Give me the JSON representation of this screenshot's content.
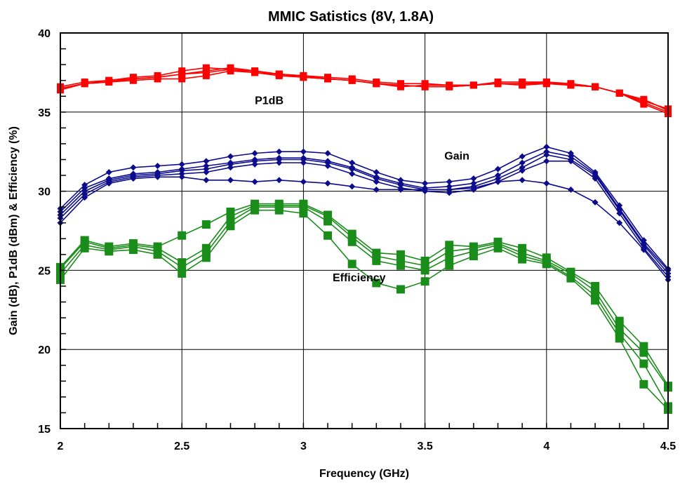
{
  "chart_data": {
    "type": "line",
    "title": "MMIC Satistics (8V, 1.8A)",
    "xlabel": "Frequency (GHz)",
    "ylabel": "Gain (dB), P1dB (dBm) & Efficiency (%)",
    "xlim": [
      2,
      4.5
    ],
    "ylim": [
      15,
      40
    ],
    "x_ticks": [
      "2",
      "2.5",
      "3",
      "3.5",
      "4",
      "4.5"
    ],
    "y_ticks": [
      "15",
      "20",
      "25",
      "30",
      "35",
      "40"
    ],
    "grid": true,
    "annotations": [
      {
        "text": "P1dB",
        "x": 2.8,
        "y": 35.5
      },
      {
        "text": "Gain",
        "x": 3.58,
        "y": 32.0
      },
      {
        "text": "Efficiency",
        "x": 3.12,
        "y": 24.3
      }
    ],
    "groups": [
      {
        "label": "P1dB",
        "color": "#ff0000",
        "marker": "square",
        "x": [
          2.0,
          2.1,
          2.2,
          2.3,
          2.4,
          2.5,
          2.6,
          2.7,
          2.8,
          2.9,
          3.0,
          3.1,
          3.2,
          3.3,
          3.4,
          3.5,
          3.6,
          3.7,
          3.8,
          3.9,
          4.0,
          4.1,
          4.2,
          4.3,
          4.4,
          4.5
        ],
        "series": [
          {
            "values": [
              36.4,
              36.8,
              36.9,
              37.0,
              37.1,
              37.1,
              37.3,
              37.6,
              37.5,
              37.3,
              37.2,
              37.1,
              37.0,
              36.8,
              36.7,
              36.6,
              36.6,
              36.7,
              36.8,
              36.8,
              36.8,
              36.7,
              36.6,
              36.2,
              35.5,
              34.9
            ]
          },
          {
            "values": [
              36.5,
              36.8,
              37.0,
              37.1,
              37.2,
              37.4,
              37.5,
              37.7,
              37.5,
              37.4,
              37.2,
              37.1,
              37.0,
              36.8,
              36.6,
              36.7,
              36.7,
              36.7,
              36.8,
              36.7,
              36.8,
              36.7,
              36.6,
              36.2,
              35.6,
              35.0
            ]
          },
          {
            "values": [
              36.6,
              36.9,
              37.0,
              37.2,
              37.3,
              37.6,
              37.8,
              37.7,
              37.6,
              37.4,
              37.3,
              37.2,
              37.1,
              36.9,
              36.8,
              36.8,
              36.7,
              36.7,
              36.9,
              36.9,
              36.9,
              36.8,
              36.6,
              36.2,
              35.8,
              35.1
            ]
          },
          {
            "values": [
              36.5,
              36.8,
              36.9,
              37.1,
              37.2,
              37.4,
              37.6,
              37.8,
              37.6,
              37.4,
              37.3,
              37.1,
              37.0,
              36.8,
              36.7,
              36.6,
              36.6,
              36.7,
              36.8,
              36.8,
              36.9,
              36.7,
              36.6,
              36.2,
              35.7,
              35.2
            ]
          }
        ]
      },
      {
        "label": "Gain",
        "color": "#0b0b8c",
        "marker": "diamond",
        "x": [
          2.0,
          2.1,
          2.2,
          2.3,
          2.4,
          2.5,
          2.6,
          2.7,
          2.8,
          2.9,
          3.0,
          3.1,
          3.2,
          3.3,
          3.4,
          3.5,
          3.6,
          3.7,
          3.8,
          3.9,
          4.0,
          4.1,
          4.2,
          4.3,
          4.4,
          4.5
        ],
        "series": [
          {
            "values": [
              28.0,
              29.6,
              30.5,
              30.8,
              30.9,
              30.9,
              30.7,
              30.7,
              30.6,
              30.7,
              30.6,
              30.5,
              30.3,
              30.1,
              30.1,
              30.1,
              30.1,
              30.2,
              30.6,
              30.7,
              30.5,
              30.1,
              29.3,
              28.0,
              26.3,
              24.4
            ]
          },
          {
            "values": [
              28.3,
              29.8,
              30.6,
              30.9,
              31.0,
              31.1,
              31.2,
              31.5,
              31.7,
              31.8,
              31.8,
              31.6,
              31.1,
              30.6,
              30.2,
              30.0,
              29.9,
              30.1,
              30.6,
              31.3,
              31.9,
              31.9,
              30.8,
              28.6,
              26.4,
              24.6
            ]
          },
          {
            "values": [
              28.5,
              30.0,
              30.7,
              31.0,
              31.1,
              31.3,
              31.4,
              31.7,
              31.9,
              32.0,
              32.0,
              31.8,
              31.4,
              30.8,
              30.4,
              30.1,
              30.1,
              30.3,
              30.8,
              31.5,
              32.3,
              32.0,
              31.0,
              28.8,
              26.6,
              24.8
            ]
          },
          {
            "values": [
              28.7,
              30.2,
              30.8,
              31.1,
              31.2,
              31.4,
              31.6,
              31.8,
              32.0,
              32.1,
              32.1,
              31.9,
              31.5,
              30.9,
              30.5,
              30.2,
              30.3,
              30.5,
              31.0,
              31.8,
              32.5,
              32.2,
              31.1,
              28.9,
              26.7,
              25.0
            ]
          },
          {
            "values": [
              28.9,
              30.4,
              31.2,
              31.5,
              31.6,
              31.7,
              31.9,
              32.2,
              32.4,
              32.5,
              32.5,
              32.4,
              31.8,
              31.2,
              30.7,
              30.5,
              30.6,
              30.8,
              31.4,
              32.2,
              32.8,
              32.4,
              31.2,
              29.1,
              26.9,
              25.1
            ]
          }
        ]
      },
      {
        "label": "Efficiency",
        "color": "#1a8c1a",
        "marker": "square",
        "x": [
          2.0,
          2.1,
          2.2,
          2.3,
          2.4,
          2.5,
          2.6,
          2.7,
          2.8,
          2.9,
          3.0,
          3.1,
          3.2,
          3.3,
          3.4,
          3.5,
          3.6,
          3.7,
          3.8,
          3.9,
          4.0,
          4.1,
          4.2,
          4.3,
          4.4,
          4.5
        ],
        "series": [
          {
            "values": [
              24.4,
              26.4,
              26.2,
              26.3,
              26.0,
              24.8,
              25.8,
              27.8,
              28.8,
              28.8,
              28.6,
              27.2,
              25.4,
              24.2,
              23.8,
              24.3,
              25.3,
              25.9,
              26.4,
              25.7,
              25.4,
              24.5,
              23.1,
              20.7,
              17.8,
              16.2
            ]
          },
          {
            "values": [
              24.8,
              26.6,
              26.3,
              26.5,
              26.2,
              25.2,
              26.1,
              28.1,
              29.0,
              29.0,
              29.0,
              28.1,
              26.8,
              25.6,
              25.3,
              25.0,
              25.8,
              26.2,
              26.6,
              25.9,
              25.5,
              24.6,
              23.4,
              21.0,
              19.1,
              16.4
            ]
          },
          {
            "values": [
              25.1,
              26.8,
              26.4,
              26.6,
              26.4,
              25.5,
              26.4,
              28.4,
              29.1,
              29.1,
              29.1,
              28.4,
              27.1,
              25.9,
              25.6,
              25.3,
              26.2,
              26.4,
              26.7,
              26.1,
              25.6,
              24.8,
              23.7,
              21.3,
              19.8,
              17.6
            ]
          },
          {
            "values": [
              25.2,
              26.9,
              26.5,
              26.7,
              26.5,
              27.2,
              27.9,
              28.7,
              29.2,
              29.2,
              29.2,
              28.5,
              27.3,
              26.1,
              26.0,
              25.6,
              26.6,
              26.5,
              26.8,
              26.4,
              25.8,
              24.9,
              24.0,
              21.8,
              20.2,
              17.7
            ]
          }
        ]
      }
    ]
  }
}
